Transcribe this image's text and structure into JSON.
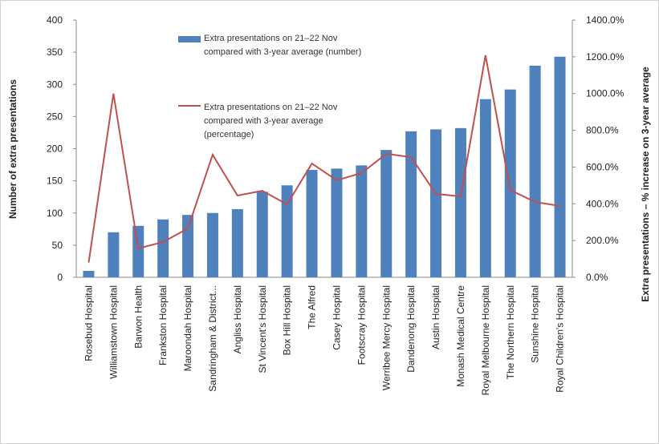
{
  "chart_data": {
    "type": "bar",
    "categories": [
      "Rosebud Hospital",
      "Williamstown Hospital",
      "Barwon Health",
      "Frankston Hospital",
      "Maroondah Hospital",
      "Sandringham & District...",
      "Angliss Hospital",
      "St Vincent's Hospital",
      "Box Hill Hospital",
      "The Alfred",
      "Casey Hospital",
      "Footscray Hospital",
      "Werribee Mercy Hospital",
      "Dandenong Hospital",
      "Austin Hospital",
      "Monash Medical Centre",
      "Royal Melbourne Hospital",
      "The Northern Hospital",
      "Sunshine Hospital",
      "Royal Children's Hospital"
    ],
    "series": [
      {
        "name": "Extra presentations on 21–22 Nov compared with 3-year average (number)",
        "type": "bar",
        "color": "#4f81bd",
        "values": [
          10,
          70,
          80,
          90,
          97,
          100,
          106,
          133,
          143,
          167,
          169,
          174,
          198,
          227,
          230,
          232,
          277,
          292,
          329,
          343
        ]
      },
      {
        "name": "Extra presentations on 21–22 Nov compared with 3-year average (percentage)",
        "type": "line",
        "axis": "y2",
        "color": "#c0504d",
        "values": [
          80,
          1000,
          157,
          192,
          266,
          667,
          445,
          471,
          397,
          619,
          528,
          567,
          672,
          654,
          454,
          440,
          1208,
          475,
          410,
          388
        ]
      }
    ],
    "ylabel": "Number of extra presentations",
    "y2label": "Extra presentations – % increase on 3-year average",
    "ylim": [
      0,
      400
    ],
    "yticks": [
      0,
      50,
      100,
      150,
      200,
      250,
      300,
      350,
      400
    ],
    "y2lim": [
      0,
      1400
    ],
    "y2ticks": [
      {
        "value": 0,
        "label": "0.0%"
      },
      {
        "value": 200,
        "label": "200.0%"
      },
      {
        "value": 400,
        "label": "400.0%"
      },
      {
        "value": 600,
        "label": "600.0%"
      },
      {
        "value": 800,
        "label": "800.0%"
      },
      {
        "value": 1000,
        "label": "1000.0%"
      },
      {
        "value": 1200,
        "label": "1200.0%"
      },
      {
        "value": 1400,
        "label": "1400.0%"
      }
    ]
  }
}
